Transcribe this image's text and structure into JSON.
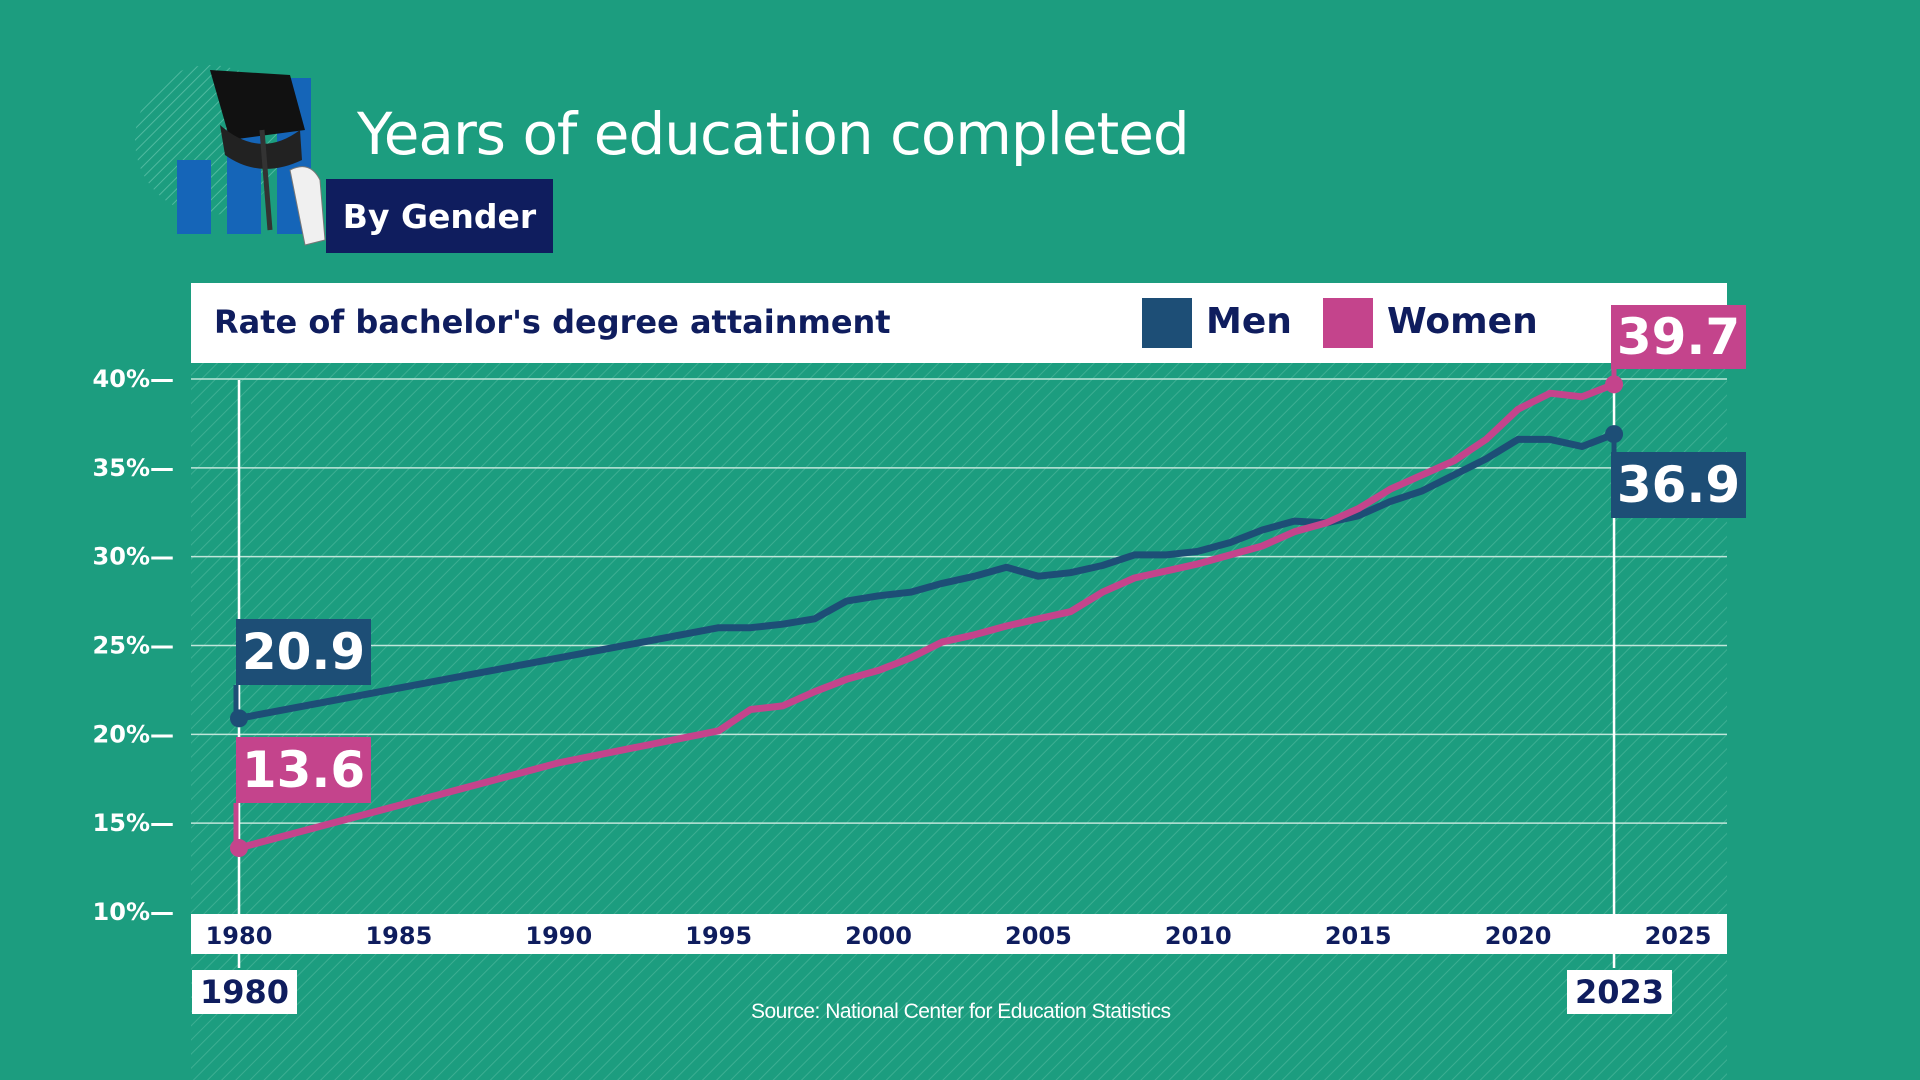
{
  "header": {
    "title": "Years of education completed",
    "subtitle": "By Gender"
  },
  "colors": {
    "background": "#1c9d7f",
    "men": "#1d4e76",
    "women": "#c4448c",
    "navy": "#0f1d5e"
  },
  "chart_data": {
    "type": "line",
    "title": "Rate of bachelor's degree attainment",
    "xlabel": "",
    "ylabel": "",
    "xlim": [
      1980,
      2025
    ],
    "ylim": [
      10,
      40
    ],
    "x_ticks": [
      "1980",
      "1985",
      "1990",
      "1995",
      "2000",
      "2005",
      "2010",
      "2015",
      "2020",
      "2025"
    ],
    "y_ticks": [
      "10%—",
      "15%—",
      "20%—",
      "25%—",
      "30%—",
      "35%—",
      "40%—"
    ],
    "grid": true,
    "legend_position": "top-right",
    "series": [
      {
        "name": "Men",
        "color": "#1d4e76",
        "points": [
          [
            1980,
            20.9
          ],
          [
            1995,
            26.0
          ],
          [
            1996,
            26.0
          ],
          [
            1997,
            26.2
          ],
          [
            1998,
            26.5
          ],
          [
            1999,
            27.5
          ],
          [
            2000,
            27.8
          ],
          [
            2001,
            28.0
          ],
          [
            2002,
            28.5
          ],
          [
            2003,
            28.9
          ],
          [
            2004,
            29.4
          ],
          [
            2005,
            28.9
          ],
          [
            2006,
            29.1
          ],
          [
            2007,
            29.5
          ],
          [
            2008,
            30.1
          ],
          [
            2009,
            30.1
          ],
          [
            2010,
            30.3
          ],
          [
            2011,
            30.8
          ],
          [
            2012,
            31.5
          ],
          [
            2013,
            32.0
          ],
          [
            2014,
            31.9
          ],
          [
            2015,
            32.3
          ],
          [
            2016,
            33.1
          ],
          [
            2017,
            33.7
          ],
          [
            2018,
            34.6
          ],
          [
            2019,
            35.5
          ],
          [
            2020,
            36.6
          ],
          [
            2021,
            36.6
          ],
          [
            2022,
            36.2
          ],
          [
            2023,
            36.9
          ]
        ]
      },
      {
        "name": "Women",
        "color": "#c4448c",
        "points": [
          [
            1980,
            13.6
          ],
          [
            1990,
            18.4
          ],
          [
            1995,
            20.2
          ],
          [
            1996,
            21.4
          ],
          [
            1997,
            21.6
          ],
          [
            1998,
            22.4
          ],
          [
            1999,
            23.1
          ],
          [
            2000,
            23.6
          ],
          [
            2001,
            24.3
          ],
          [
            2002,
            25.2
          ],
          [
            2003,
            25.6
          ],
          [
            2004,
            26.1
          ],
          [
            2005,
            26.5
          ],
          [
            2006,
            26.9
          ],
          [
            2007,
            28.0
          ],
          [
            2008,
            28.8
          ],
          [
            2009,
            29.2
          ],
          [
            2010,
            29.6
          ],
          [
            2011,
            30.1
          ],
          [
            2012,
            30.6
          ],
          [
            2013,
            31.4
          ],
          [
            2014,
            31.9
          ],
          [
            2015,
            32.7
          ],
          [
            2016,
            33.8
          ],
          [
            2017,
            34.6
          ],
          [
            2018,
            35.4
          ],
          [
            2019,
            36.6
          ],
          [
            2020,
            38.3
          ],
          [
            2021,
            39.2
          ],
          [
            2022,
            39.0
          ],
          [
            2023,
            39.7
          ]
        ]
      }
    ],
    "annotations": [
      {
        "series": "Men",
        "x": 1980,
        "label": "20.9"
      },
      {
        "series": "Women",
        "x": 1980,
        "label": "13.6"
      },
      {
        "series": "Men",
        "x": 2023,
        "label": "36.9"
      },
      {
        "series": "Women",
        "x": 2023,
        "label": "39.7"
      }
    ],
    "marker_years": [
      "1980",
      "2023"
    ]
  },
  "source": "Source: National Center for Education Statistics"
}
